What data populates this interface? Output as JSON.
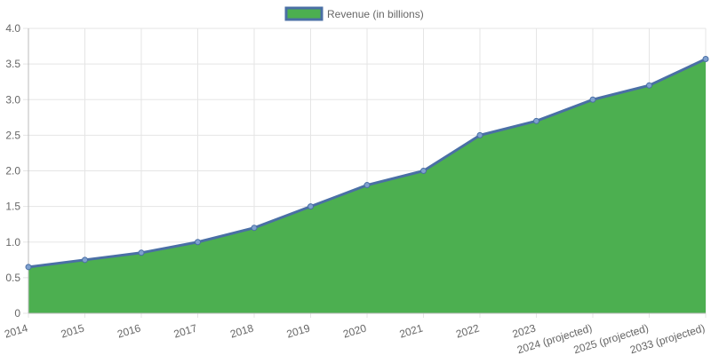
{
  "chart_data": {
    "type": "area",
    "categories": [
      "2014",
      "2015",
      "2016",
      "2017",
      "2018",
      "2019",
      "2020",
      "2021",
      "2022",
      "2023",
      "2024 (projected)",
      "2025 (projected)",
      "2033 (projected)"
    ],
    "series": [
      {
        "name": "Revenue (in billions)",
        "values": [
          0.65,
          0.75,
          0.85,
          1.0,
          1.2,
          1.5,
          1.8,
          2.0,
          2.5,
          2.7,
          3.0,
          3.2,
          3.57
        ]
      }
    ],
    "yticks": [
      "0",
      "0.5",
      "1.0",
      "1.5",
      "2.0",
      "2.5",
      "3.0",
      "3.5",
      "4.0"
    ],
    "ylim": [
      0,
      4.0
    ],
    "grid": true,
    "legend_position": "top-center",
    "fill_color": "#4caf50",
    "line_color": "#4a6fa5",
    "grid_color": "#e5e5e5"
  }
}
